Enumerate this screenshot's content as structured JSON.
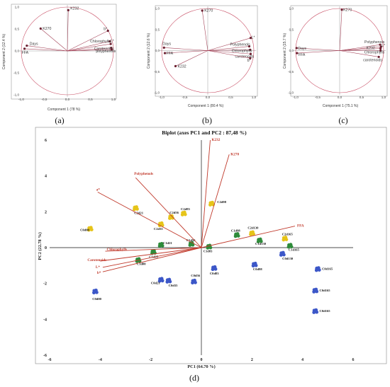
{
  "chart_data": [
    {
      "panel_label": "(a)",
      "type": "scatter",
      "xlabel": "Component 1 (78 %)",
      "ylabel": "Component 2 (12.4 %)",
      "xlim": [
        -1.0,
        1.0
      ],
      "ylim": [
        -1.0,
        1.0
      ],
      "xticks": [
        "-1,0",
        "-0,5",
        "0,0",
        "0,5",
        "1,0"
      ],
      "yticks": [
        "1,0",
        "0,5",
        "0,0",
        "-0,5",
        "-1,0"
      ],
      "loadings": [
        {
          "name": "K232",
          "x": 0.02,
          "y": 0.93
        },
        {
          "name": "K270",
          "x": -0.58,
          "y": 0.51
        },
        {
          "name": "b*",
          "x": 0.88,
          "y": 0.46
        },
        {
          "name": "L*",
          "x": 0.92,
          "y": 0.22
        },
        {
          "name": "Chlorophylls",
          "x": 0.94,
          "y": 0.16
        },
        {
          "name": "Carotenoids",
          "x": 0.95,
          "y": 0.07
        },
        {
          "name": "polyphenols",
          "x": 0.96,
          "y": 0.03
        },
        {
          "name": "Days",
          "x": -0.88,
          "y": 0.12
        },
        {
          "name": "FFA",
          "x": -0.93,
          "y": 0.05
        }
      ]
    },
    {
      "panel_label": "(b)",
      "type": "scatter",
      "xlabel": "Component 1 (80.4 %)",
      "ylabel": "Component 2 (12.6 %)",
      "xlim": [
        -1.0,
        1.0
      ],
      "ylim": [
        -1.0,
        1.0
      ],
      "xticks": [
        "-1,0",
        "-0,5",
        "0,0",
        "0,5",
        "1,0"
      ],
      "yticks": [
        "1,0",
        "0,5",
        "0,0",
        "-0,5",
        "-1,0"
      ],
      "loadings": [
        {
          "name": "K270",
          "x": -0.12,
          "y": 0.95
        },
        {
          "name": "L*",
          "x": 0.93,
          "y": 0.3
        },
        {
          "name": "Polyphenols",
          "x": 0.9,
          "y": 0.1
        },
        {
          "name": "Chlorophylls",
          "x": 0.92,
          "y": 0.02
        },
        {
          "name": "carotenoids",
          "x": 0.93,
          "y": -0.08
        },
        {
          "name": "b*",
          "x": 0.92,
          "y": -0.18
        },
        {
          "name": "Days",
          "x": -0.95,
          "y": 0.07
        },
        {
          "name": "FFA",
          "x": -0.93,
          "y": -0.06
        },
        {
          "name": "K232",
          "x": -0.7,
          "y": -0.37
        }
      ]
    },
    {
      "panel_label": "(c)",
      "type": "scatter",
      "xlabel": "Component 1 (75.1 %)",
      "ylabel": "Component 2 (15.7 %)",
      "xlim": [
        -1.0,
        1.0
      ],
      "ylim": [
        -1.0,
        1.0
      ],
      "xticks": [
        "-1,0",
        "-0,5",
        "0,0",
        "0,5",
        "1,0"
      ],
      "yticks": [
        "1,0",
        "0,5",
        "0,0",
        "-0,5",
        "-1,0"
      ],
      "loadings": [
        {
          "name": "K270",
          "x": 0.05,
          "y": 0.97
        },
        {
          "name": "Polyphenols",
          "x": 0.92,
          "y": 0.14
        },
        {
          "name": "L*",
          "x": 0.94,
          "y": 0.09
        },
        {
          "name": "K232",
          "x": 0.93,
          "y": 0.05
        },
        {
          "name": "Chlorophylls",
          "x": 0.93,
          "y": 0.0
        },
        {
          "name": "carotenoids",
          "x": 0.89,
          "y": -0.15
        },
        {
          "name": "Days",
          "x": -0.98,
          "y": 0.06
        },
        {
          "name": "FFA",
          "x": -0.97,
          "y": -0.06
        }
      ]
    },
    {
      "panel_label": "(d)",
      "type": "scatter",
      "title": "Biplot (axes PC1 and PC2 : 87,48 %)",
      "xlabel": "PC1 (64.70 %)",
      "ylabel": "PC2 (22.78 %)",
      "xlim": [
        -6,
        6
      ],
      "ylim": [
        -6,
        6
      ],
      "xticks": [
        "-6",
        "-4",
        "-2",
        "0",
        "2",
        "4",
        "6"
      ],
      "yticks": [
        "6",
        "4",
        "2",
        "0",
        "-2",
        "-4",
        "-6"
      ],
      "colors": {
        "yellow": "#e6c419",
        "green": "#2e8b3a",
        "blue": "#3c57c8",
        "vector": "#c0392b"
      },
      "loadings": [
        {
          "name": "K232",
          "x": 0.35,
          "y": 6.0
        },
        {
          "name": "K270",
          "x": 1.1,
          "y": 5.2
        },
        {
          "name": "Polyphenols",
          "x": -2.6,
          "y": 3.9
        },
        {
          "name": "a*",
          "x": -4.1,
          "y": 3.1
        },
        {
          "name": "FFA",
          "x": 3.7,
          "y": 1.2
        },
        {
          "name": "Chlorophylls",
          "x": -3.8,
          "y": -0.2
        },
        {
          "name": "Carotenoids",
          "x": -4.0,
          "y": -0.75
        },
        {
          "name": "L*",
          "x": -3.9,
          "y": -1.1
        },
        {
          "name": "b*",
          "x": -3.9,
          "y": -1.35
        }
      ],
      "observations": [
        {
          "label": "C0d00",
          "x": -4.4,
          "y": 1.05,
          "group": "yellow"
        },
        {
          "label": "C2d21",
          "x": -2.6,
          "y": 2.2,
          "group": "yellow"
        },
        {
          "label": "C2d35",
          "x": -1.6,
          "y": 1.3,
          "group": "yellow"
        },
        {
          "label": "C2d56",
          "x": -1.2,
          "y": 1.7,
          "group": "yellow"
        },
        {
          "label": "C2d83",
          "x": -0.7,
          "y": 1.9,
          "group": "yellow"
        },
        {
          "label": "C2d98",
          "x": 0.4,
          "y": 2.45,
          "group": "yellow"
        },
        {
          "label": "C2d130",
          "x": 2.0,
          "y": 0.8,
          "group": "yellow"
        },
        {
          "label": "C2d165",
          "x": 3.3,
          "y": 0.5,
          "group": "yellow"
        },
        {
          "label": "C1d00",
          "x": -2.5,
          "y": -0.7,
          "group": "green"
        },
        {
          "label": "C1d35",
          "x": -1.9,
          "y": -0.25,
          "group": "green"
        },
        {
          "label": "C1d21",
          "x": -1.6,
          "y": 0.15,
          "group": "green"
        },
        {
          "label": "C1d56",
          "x": -0.4,
          "y": 0.2,
          "group": "green"
        },
        {
          "label": "C1d83",
          "x": 0.3,
          "y": 0.05,
          "group": "green"
        },
        {
          "label": "C1d98",
          "x": 1.4,
          "y": 0.7,
          "group": "green"
        },
        {
          "label": "C1d130",
          "x": 2.3,
          "y": 0.4,
          "group": "green"
        },
        {
          "label": "C1d165",
          "x": 3.5,
          "y": 0.1,
          "group": "green"
        },
        {
          "label": "C0d00",
          "x": -4.2,
          "y": -2.45,
          "group": "blue"
        },
        {
          "label": "C0d21",
          "x": -1.6,
          "y": -1.8,
          "group": "blue"
        },
        {
          "label": "C0d35",
          "x": -1.3,
          "y": -1.85,
          "group": "blue"
        },
        {
          "label": "C0d56",
          "x": -0.3,
          "y": -1.9,
          "group": "blue"
        },
        {
          "label": "C0d83",
          "x": 0.5,
          "y": -1.15,
          "group": "blue"
        },
        {
          "label": "C0d98",
          "x": 2.1,
          "y": -0.95,
          "group": "blue"
        },
        {
          "label": "C0d130",
          "x": 3.2,
          "y": -0.35,
          "group": "blue"
        },
        {
          "label": "C0d165",
          "x": 4.6,
          "y": -1.2,
          "group": "blue"
        },
        {
          "label": "C0d165",
          "x": 4.5,
          "y": -2.4,
          "group": "blue"
        },
        {
          "label": "C0d165",
          "x": 4.5,
          "y": -3.55,
          "group": "blue"
        }
      ]
    }
  ]
}
